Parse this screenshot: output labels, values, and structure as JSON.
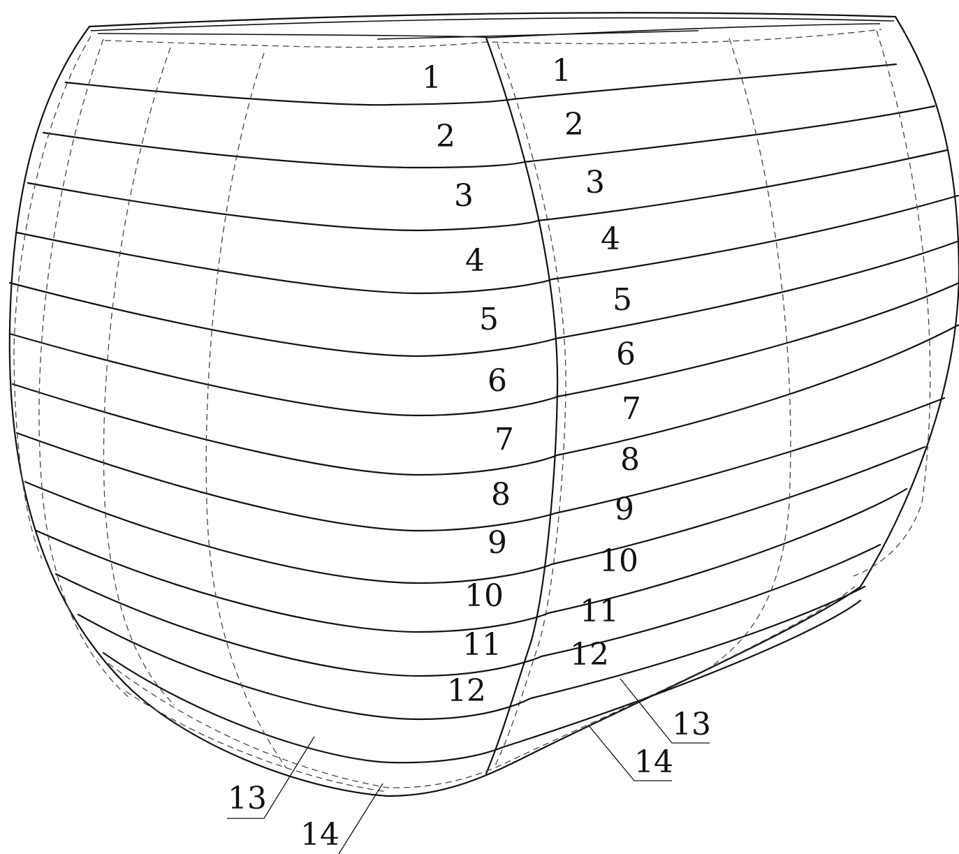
{
  "left_face_labels": [
    "1",
    "2",
    "3",
    "4",
    "5",
    "6",
    "7",
    "8",
    "9",
    "10",
    "11",
    "12"
  ],
  "right_face_labels": [
    "1",
    "2",
    "3",
    "4",
    "5",
    "6",
    "7",
    "8",
    "9",
    "10",
    "11",
    "12"
  ],
  "callouts": {
    "left_13": "13",
    "left_14": "14",
    "right_13": "13",
    "right_14": "14"
  }
}
